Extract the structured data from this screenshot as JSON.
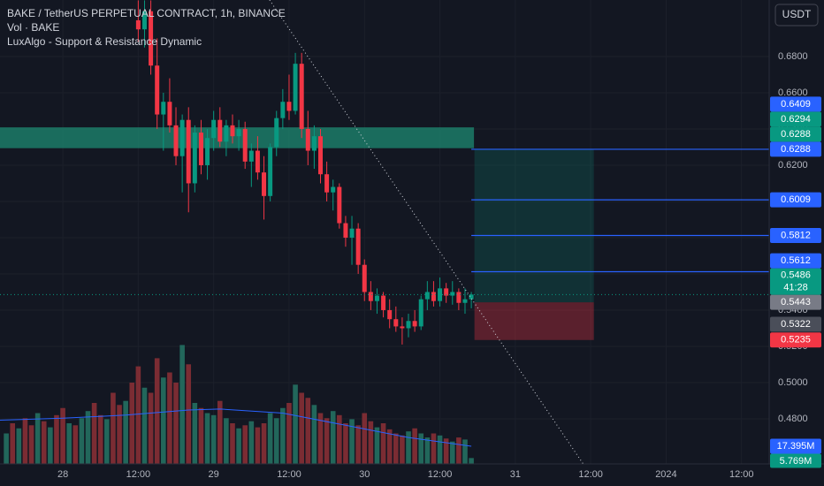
{
  "chart_data": {
    "type": "candlestick",
    "title": "BAKE / TetherUS PERPETUAL CONTRACT, 1h, BINANCE",
    "indicators": [
      "Vol · BAKE",
      "LuxAlgo - Support & Resistance Dynamic"
    ],
    "currency_button": "USDT",
    "xlim": [
      -10,
      112.4
    ],
    "xticks": [
      {
        "value": 0,
        "label": "28"
      },
      {
        "value": 12,
        "label": "12:00"
      },
      {
        "value": 24,
        "label": "29"
      },
      {
        "value": 36,
        "label": "12:00"
      },
      {
        "value": 48,
        "label": "30"
      },
      {
        "value": 60,
        "label": "12:00"
      },
      {
        "value": 72,
        "label": "31"
      },
      {
        "value": 84,
        "label": "12:00"
      },
      {
        "value": 96,
        "label": "2024"
      },
      {
        "value": 108,
        "label": "12:00"
      }
    ],
    "ylim": [
      0.4551,
      0.7112
    ],
    "yticks": [
      {
        "value": 0.48,
        "label": "0.4800"
      },
      {
        "value": 0.5,
        "label": "0.5000"
      },
      {
        "value": 0.52,
        "label": "0.5200"
      },
      {
        "value": 0.54,
        "label": "0.5400"
      },
      {
        "value": 0.56,
        "label": "0.5600"
      },
      {
        "value": 0.58,
        "label": "0.5800"
      },
      {
        "value": 0.6,
        "label": "0.6000"
      },
      {
        "value": 0.62,
        "label": "0.6200"
      },
      {
        "value": 0.64,
        "label": "0.6400"
      },
      {
        "value": 0.66,
        "label": "0.6600"
      },
      {
        "value": 0.68,
        "label": "0.6800"
      }
    ],
    "grid": true,
    "up_color": "#089981",
    "down_color": "#f23645",
    "candles": {
      "x": [
        12,
        13,
        14,
        15,
        16,
        17,
        18,
        19,
        20,
        21,
        22,
        23,
        24,
        25,
        26,
        27,
        28,
        29,
        30,
        31,
        32,
        33,
        34,
        35,
        36,
        37,
        38,
        39,
        40,
        41,
        42,
        43,
        44,
        45,
        46,
        47,
        48,
        49,
        50,
        51,
        52,
        53,
        54,
        55,
        56,
        57,
        58,
        59,
        60,
        61,
        62,
        63,
        64,
        65
      ],
      "open": [
        0.7,
        0.695,
        0.705,
        0.675,
        0.648,
        0.655,
        0.642,
        0.625,
        0.645,
        0.61,
        0.638,
        0.62,
        0.635,
        0.645,
        0.633,
        0.642,
        0.636,
        0.64,
        0.622,
        0.628,
        0.616,
        0.603,
        0.63,
        0.646,
        0.655,
        0.65,
        0.676,
        0.64,
        0.628,
        0.636,
        0.615,
        0.605,
        0.608,
        0.588,
        0.58,
        0.585,
        0.565,
        0.55,
        0.545,
        0.548,
        0.54,
        0.535,
        0.531,
        0.53,
        0.534,
        0.531,
        0.546,
        0.55,
        0.545,
        0.552,
        0.548,
        0.55,
        0.544,
        0.546
      ],
      "high": [
        0.711,
        0.711,
        0.711,
        0.69,
        0.66,
        0.668,
        0.652,
        0.648,
        0.652,
        0.642,
        0.645,
        0.64,
        0.65,
        0.652,
        0.645,
        0.648,
        0.645,
        0.644,
        0.632,
        0.636,
        0.625,
        0.632,
        0.65,
        0.662,
        0.67,
        0.682,
        0.682,
        0.65,
        0.642,
        0.64,
        0.622,
        0.612,
        0.61,
        0.592,
        0.592,
        0.588,
        0.568,
        0.556,
        0.552,
        0.55,
        0.546,
        0.542,
        0.536,
        0.538,
        0.54,
        0.548,
        0.556,
        0.556,
        0.558,
        0.555,
        0.556,
        0.552,
        0.552,
        0.55
      ],
      "low": [
        0.688,
        0.685,
        0.67,
        0.64,
        0.628,
        0.638,
        0.62,
        0.605,
        0.594,
        0.605,
        0.615,
        0.612,
        0.628,
        0.63,
        0.625,
        0.632,
        0.628,
        0.618,
        0.608,
        0.612,
        0.59,
        0.6,
        0.625,
        0.64,
        0.645,
        0.648,
        0.635,
        0.62,
        0.618,
        0.61,
        0.6,
        0.595,
        0.585,
        0.575,
        0.565,
        0.56,
        0.545,
        0.54,
        0.538,
        0.536,
        0.53,
        0.528,
        0.521,
        0.525,
        0.528,
        0.529,
        0.54,
        0.542,
        0.542,
        0.544,
        0.543,
        0.54,
        0.538,
        0.541
      ],
      "close": [
        0.695,
        0.705,
        0.675,
        0.648,
        0.655,
        0.642,
        0.625,
        0.645,
        0.61,
        0.638,
        0.62,
        0.635,
        0.645,
        0.633,
        0.642,
        0.636,
        0.64,
        0.622,
        0.628,
        0.616,
        0.603,
        0.63,
        0.646,
        0.655,
        0.65,
        0.676,
        0.64,
        0.628,
        0.636,
        0.615,
        0.605,
        0.608,
        0.588,
        0.58,
        0.585,
        0.565,
        0.55,
        0.545,
        0.548,
        0.54,
        0.535,
        0.531,
        0.53,
        0.534,
        0.531,
        0.546,
        0.55,
        0.545,
        0.552,
        0.548,
        0.55,
        0.544,
        0.546,
        0.5486
      ]
    },
    "volume": {
      "vlim": [
        0,
        456.5
      ],
      "x": [
        -9,
        -8,
        -7,
        -6,
        -5,
        -4,
        -3,
        -2,
        -1,
        0,
        1,
        2,
        3,
        4,
        5,
        6,
        7,
        8,
        9,
        10,
        11,
        12,
        13,
        14,
        15,
        16,
        17,
        18,
        19,
        20,
        21,
        22,
        23,
        24,
        25,
        26,
        27,
        28,
        29,
        30,
        31,
        32,
        33,
        34,
        35,
        36,
        37,
        38,
        39,
        40,
        41,
        42,
        43,
        44,
        45,
        46,
        47,
        48,
        49,
        50,
        51,
        52,
        53,
        54,
        55,
        56,
        57,
        58,
        59,
        60,
        61,
        62,
        63,
        64,
        65
      ],
      "values": [
        30,
        40,
        35,
        45,
        38,
        50,
        42,
        36,
        48,
        55,
        40,
        38,
        45,
        52,
        60,
        48,
        44,
        70,
        58,
        62,
        80,
        96,
        75,
        70,
        104,
        85,
        90,
        80,
        117,
        98,
        60,
        55,
        50,
        48,
        62,
        45,
        40,
        35,
        38,
        42,
        36,
        40,
        50,
        45,
        55,
        60,
        78,
        70,
        65,
        58,
        50,
        45,
        52,
        48,
        40,
        44,
        38,
        50,
        42,
        36,
        40,
        34,
        30,
        28,
        32,
        35,
        30,
        26,
        30,
        28,
        25,
        22,
        26,
        24,
        5.769
      ],
      "value_labels_last": "5.769M",
      "up": [
        1,
        0,
        1,
        0,
        0,
        1,
        0,
        1,
        0,
        0,
        1,
        0,
        1,
        1,
        0,
        0,
        1,
        0,
        0,
        1,
        0,
        0,
        1,
        0,
        0,
        1,
        0,
        0,
        1,
        0,
        1,
        0,
        1,
        1,
        0,
        1,
        0,
        1,
        0,
        1,
        0,
        0,
        1,
        1,
        1,
        0,
        1,
        0,
        0,
        1,
        0,
        0,
        1,
        0,
        0,
        1,
        0,
        0,
        0,
        1,
        0,
        0,
        0,
        0,
        1,
        0,
        1,
        1,
        0,
        1,
        0,
        1,
        0,
        1,
        1
      ],
      "up_color": "#22675b",
      "down_color": "#7b2c33",
      "ma": {
        "x": [
          -10,
          0,
          10,
          20,
          25,
          35,
          45,
          55,
          65
        ],
        "values": [
          43,
          45,
          48,
          53,
          54,
          50,
          38,
          26,
          17.395
        ],
        "value_label_last": "17.395M",
        "color": "#2962ff"
      }
    },
    "zone": {
      "top": 0.6409,
      "bottom": 0.6294,
      "fill": "#1e8a72",
      "top_color": "#2962ff",
      "bottom_color": "#089981"
    },
    "levels": {
      "values": [
        0.6288,
        0.6009,
        0.5812,
        0.5612
      ],
      "color": "#2962ff"
    },
    "position": {
      "target": 0.6288,
      "entry": 0.5443,
      "stop": 0.5235,
      "x": [
        65.5,
        84.5
      ],
      "target_color": "#089981",
      "entry_color": "#787b86",
      "stop_color": "#f23645"
    },
    "last_price": {
      "value": 0.5486,
      "countdown": "41:28",
      "color": "#089981"
    },
    "marker_price": {
      "value": 0.5322,
      "color": "#4a4e59"
    },
    "trendline": {
      "x": [
        32.9,
        82.8
      ],
      "y": [
        0.7112,
        0.4551
      ]
    }
  }
}
